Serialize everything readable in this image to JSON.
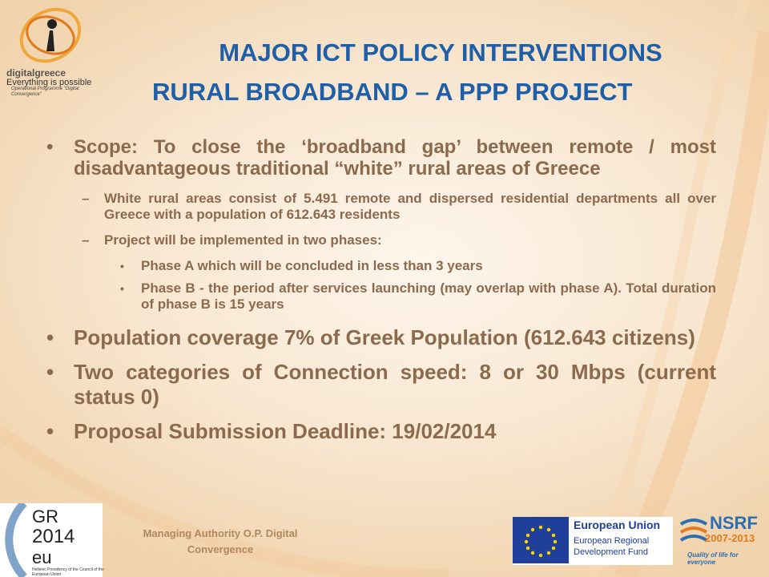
{
  "logo": {
    "brand": "digitalgreece",
    "tagline": "Everything is possible",
    "sub": "Operational Programme \"Digital Convergence\""
  },
  "title": {
    "line1": "MAJOR ICT POLICY INTERVENTIONS",
    "line2": "RURAL BROADBAND – A PPP PROJECT"
  },
  "bullets": {
    "scope": "Scope: To close the ‘broadband gap’ between remote / most disadvantageous traditional “white” rural areas of Greece",
    "sub1": "White rural areas consist of 5.491 remote and dispersed residential departments all over Greece with a population of 612.643 residents",
    "sub2": "Project will be implemented in two phases:",
    "phaseA": "Phase A which will be concluded in less than 3 years",
    "phaseB": "Phase B - the period after services launching (may overlap with phase A). Total duration of phase B is 15 years",
    "population": "Population coverage 7% of Greek Population (612.643 citizens)",
    "speed": "Two categories of Connection speed: 8 or 30 Mbps (current status 0)",
    "deadline": "Proposal Submission Deadline: 19/02/2014"
  },
  "footer": {
    "gr_line1": "GR",
    "gr_line2": "2014",
    "gr_line3": "eu",
    "gr_caption": "Hellenic Presidency of the Council of the European Union",
    "managing": "Managing Authority O.P. Digital Convergence",
    "eu_title": "European Union",
    "eu_fund": "European Regional Development Fund",
    "nsrf_title": "NSRF",
    "nsrf_years": "2007-2013",
    "nsrf_tag": "Quality of life for everyone"
  }
}
